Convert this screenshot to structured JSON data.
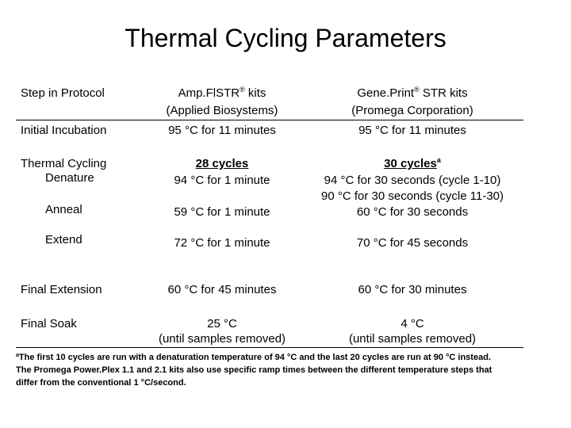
{
  "title": "Thermal Cycling Parameters",
  "header": {
    "col1": "Step in Protocol",
    "col2_line1": "Amp.FlSTR",
    "col2_reg": "®",
    "col2_line1b": " kits",
    "col2_line2": "(Applied Biosystems)",
    "col3_line1": "Gene.Print",
    "col3_reg": "®",
    "col3_line1b": " STR kits",
    "col3_line2": "(Promega Corporation)"
  },
  "rows": {
    "initial": {
      "label": "Initial Incubation",
      "amp": "95 °C for 11 minutes",
      "gene": "95 °C for 11 minutes"
    },
    "cycling": {
      "label1": "Thermal Cycling",
      "label2": "Denature",
      "amp_cycles": "28 cycles",
      "amp": "94 °C for 1 minute",
      "gene_cycles": "30 cycles",
      "gene_sup": "a",
      "gene1": "94 °C for 30 seconds  (cycle 1-10)",
      "gene2": "90 °C for 30 seconds (cycle 11-30)"
    },
    "anneal": {
      "label": "Anneal",
      "amp": "59 °C for 1 minute",
      "gene": "60 °C for 30 seconds"
    },
    "extend": {
      "label": "Extend",
      "amp": "72 °C for 1 minute",
      "gene": "70 °C for 45 seconds"
    },
    "final_ext": {
      "label": "Final Extension",
      "amp": "60 °C for 45 minutes",
      "gene": "60 °C for 30 minutes"
    },
    "final_soak": {
      "label": "Final Soak",
      "amp1": "25 °C",
      "amp2": "(until samples removed)",
      "gene1": "4 °C",
      "gene2": "(until samples removed)"
    }
  },
  "footnote": {
    "marker": "a",
    "text1": "The first 10 cycles are run with a denaturation temperature of 94 °C and the last 20 cycles are run at 90 °C instead.",
    "text2": "The Promega Power.Plex 1.1 and 2.1 kits also use specific ramp times between the different temperature steps that",
    "text3": "differ from the conventional 1 °C/second."
  }
}
